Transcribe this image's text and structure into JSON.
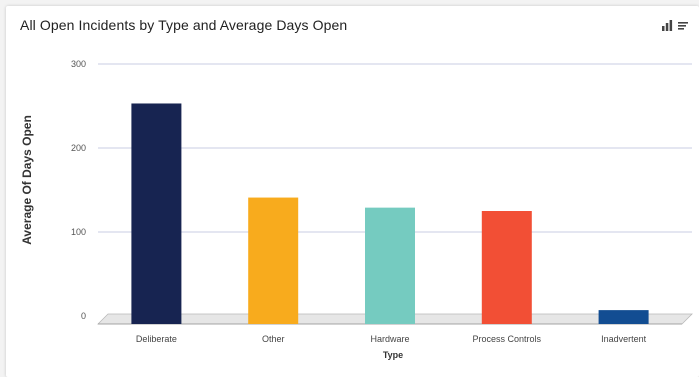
{
  "widget": {
    "title": "All Open Incidents by Type and Average Days Open",
    "icons": [
      "bar-chart-icon",
      "menu-lines-icon"
    ]
  },
  "chart_data": {
    "type": "bar",
    "title": "All Open Incidents by Type and Average Days Open",
    "xlabel": "Type",
    "ylabel": "Average Of Days Open",
    "categories": [
      "Deliberate",
      "Other",
      "Hardware",
      "Process Controls",
      "Inadvertent"
    ],
    "values": [
      253,
      141,
      129,
      125,
      7
    ],
    "ylim": [
      0,
      300
    ],
    "yticks": [
      0,
      100,
      200,
      300
    ],
    "colors": [
      "#172451",
      "#f8ab1d",
      "#75cbc0",
      "#f24f35",
      "#124d92"
    ],
    "grid": true,
    "legend": "none"
  }
}
